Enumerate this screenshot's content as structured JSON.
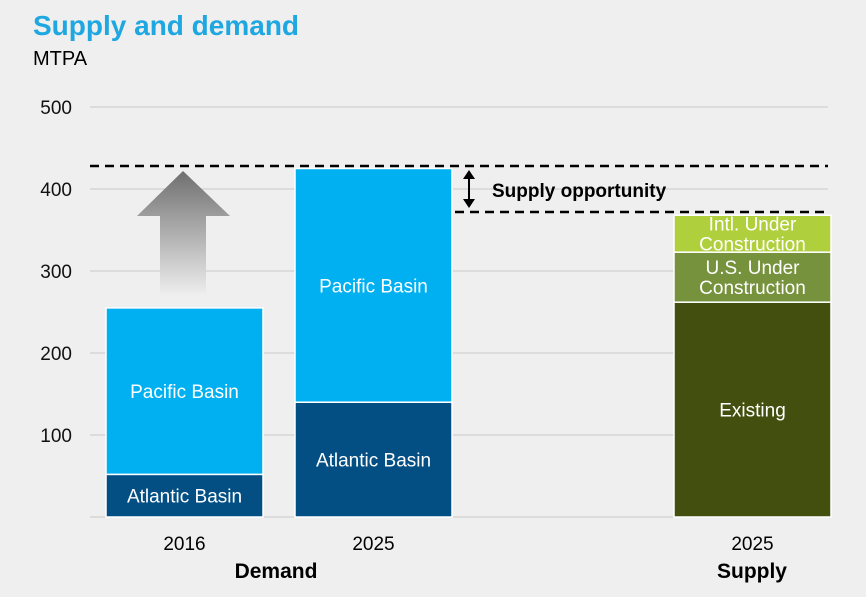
{
  "header": {
    "title": "Supply and demand",
    "unit": "MTPA"
  },
  "colors": {
    "title": "#1ea7e0",
    "pacific": "#00b0f0",
    "atlantic": "#034f84",
    "existing": "#434f0f",
    "us_under_construction": "#76923c",
    "intl_under_construction": "#b0cf3c",
    "arrow": "#6f6f6f"
  },
  "chart_data": {
    "type": "bar",
    "stacked": true,
    "y_ticks": [
      100,
      200,
      300,
      400,
      500
    ],
    "ylim": [
      0,
      500
    ],
    "grid": true,
    "bars": [
      {
        "category": "2016",
        "group": "Demand",
        "segments": [
          {
            "name": "Atlantic Basin",
            "value": 52,
            "color_key": "atlantic"
          },
          {
            "name": "Pacific Basin",
            "value": 203,
            "color_key": "pacific"
          }
        ]
      },
      {
        "category": "2025",
        "group": "Demand",
        "segments": [
          {
            "name": "Atlantic Basin",
            "value": 140,
            "color_key": "atlantic"
          },
          {
            "name": "Pacific Basin",
            "value": 285,
            "color_key": "pacific"
          }
        ]
      },
      {
        "category": "2025",
        "group": "Supply",
        "segments": [
          {
            "name": "Existing",
            "value": 262,
            "color_key": "existing"
          },
          {
            "name": "U.S. Under Construction",
            "label_lines": [
              "U.S. Under",
              "Construction"
            ],
            "value": 61,
            "color_key": "us_under_construction"
          },
          {
            "name": "Intl. Under Construction",
            "label_lines": [
              "Intl. Under",
              "Construction"
            ],
            "value": 45,
            "color_key": "intl_under_construction"
          }
        ]
      }
    ],
    "groups": [
      "Demand",
      "Supply"
    ],
    "reference_lines": [
      428,
      372
    ],
    "annotations": {
      "supply_opportunity": "Supply opportunity"
    }
  }
}
